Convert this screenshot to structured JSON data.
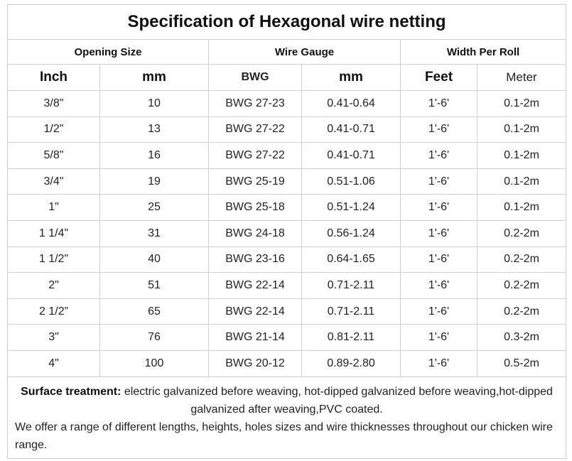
{
  "title": "Specification of Hexagonal wire netting",
  "groups": {
    "opening_size": "Opening Size",
    "wire_gauge": "Wire Gauge",
    "width_per_roll": "Width Per Roll"
  },
  "subheaders": {
    "inch": "Inch",
    "mm": "mm",
    "bwg": "BWG",
    "wire_mm": "mm",
    "feet": "Feet",
    "meter": "Meter"
  },
  "rows": [
    {
      "inch": "3/8\"",
      "mm": "10",
      "bwg": "BWG 27-23",
      "wire_mm": "0.41-0.64",
      "feet": "1'-6'",
      "meter": "0.1-2m"
    },
    {
      "inch": "1/2\"",
      "mm": "13",
      "bwg": "BWG 27-22",
      "wire_mm": "0.41-0.71",
      "feet": "1'-6'",
      "meter": "0.1-2m"
    },
    {
      "inch": "5/8\"",
      "mm": "16",
      "bwg": "BWG 27-22",
      "wire_mm": "0.41-0.71",
      "feet": "1'-6'",
      "meter": "0.1-2m"
    },
    {
      "inch": "3/4\"",
      "mm": "19",
      "bwg": "BWG 25-19",
      "wire_mm": "0.51-1.06",
      "feet": "1'-6'",
      "meter": "0.1-2m"
    },
    {
      "inch": "1\"",
      "mm": "25",
      "bwg": "BWG 25-18",
      "wire_mm": "0.51-1.24",
      "feet": "1'-6'",
      "meter": "0.1-2m"
    },
    {
      "inch": "1 1/4\"",
      "mm": "31",
      "bwg": "BWG 24-18",
      "wire_mm": "0.56-1.24",
      "feet": "1'-6'",
      "meter": "0.2-2m"
    },
    {
      "inch": "1 1/2\"",
      "mm": "40",
      "bwg": "BWG 23-16",
      "wire_mm": "0.64-1.65",
      "feet": "1'-6'",
      "meter": "0.2-2m"
    },
    {
      "inch": "2\"",
      "mm": "51",
      "bwg": "BWG 22-14",
      "wire_mm": "0.71-2.11",
      "feet": "1'-6'",
      "meter": "0.2-2m"
    },
    {
      "inch": "2 1/2”",
      "mm": "65",
      "bwg": "BWG 22-14",
      "wire_mm": "0.71-2.11",
      "feet": "1'-6'",
      "meter": "0.2-2m"
    },
    {
      "inch": "3\"",
      "mm": "76",
      "bwg": "BWG 21-14",
      "wire_mm": "0.81-2.11",
      "feet": "1'-6'",
      "meter": "0.3-2m"
    },
    {
      "inch": "4\"",
      "mm": "100",
      "bwg": "BWG 20-12",
      "wire_mm": "0.89-2.80",
      "feet": "1'-6'",
      "meter": "0.5-2m"
    }
  ],
  "notes": {
    "surface_label": "Surface treatment:",
    "surface_text": " electric galvanized before weaving, hot-dipped galvanized before weaving,hot-dipped galvanized after weaving,PVC coated.",
    "offer_text": "We offer a range of different lengths, heights, holes sizes and wire thicknesses throughout our chicken wire range."
  }
}
